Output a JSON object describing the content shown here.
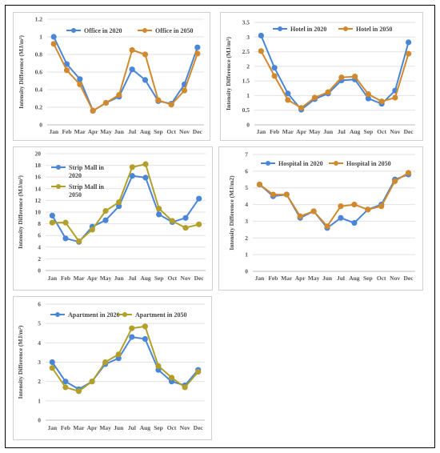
{
  "months": [
    "Jan",
    "Feb",
    "Mar",
    "Apr",
    "May",
    "Jun",
    "Jul",
    "Aug",
    "Sep",
    "Oct",
    "Nov",
    "Dec"
  ],
  "colors": {
    "s2020": "#4a86d8",
    "s2050": "#d1892d",
    "s2050_alt": "#b2a02a",
    "grid": "#e2e2e2"
  },
  "chart_data": [
    {
      "id": "office",
      "type": "line",
      "ylabel": "Intensity Difference (MJ/m²)",
      "ylim": [
        0,
        1.2
      ],
      "yticks": [
        "0",
        "0.2",
        "0.4",
        "0.6",
        "0.8",
        "1",
        "1.2"
      ],
      "legend_position": "top",
      "series": [
        {
          "name": "Office in 2020",
          "values": [
            1.0,
            0.69,
            0.52,
            0.16,
            0.25,
            0.32,
            0.63,
            0.51,
            0.27,
            0.24,
            0.46,
            0.88
          ]
        },
        {
          "name": "Office in 2050",
          "values": [
            0.92,
            0.62,
            0.46,
            0.16,
            0.25,
            0.34,
            0.85,
            0.8,
            0.28,
            0.23,
            0.39,
            0.81
          ]
        }
      ]
    },
    {
      "id": "hotel",
      "type": "line",
      "ylabel": "Intensity Difference (MJ/m²)",
      "ylim": [
        0,
        3.5
      ],
      "yticks": [
        "0",
        "0.5",
        "1",
        "1.5",
        "2",
        "2.5",
        "3",
        "3.5"
      ],
      "legend_position": "top",
      "series": [
        {
          "name": "Hotel in 2020",
          "values": [
            3.05,
            1.95,
            1.07,
            0.52,
            0.88,
            1.07,
            1.52,
            1.55,
            0.9,
            0.72,
            1.17,
            2.82
          ]
        },
        {
          "name": "Hotel in 2050",
          "values": [
            2.52,
            1.67,
            0.85,
            0.58,
            0.93,
            1.12,
            1.62,
            1.65,
            1.05,
            0.8,
            0.93,
            2.43
          ]
        }
      ]
    },
    {
      "id": "stripmall",
      "type": "line",
      "ylabel": "Intensity Difference (MJ/m²)",
      "ylim": [
        0,
        20
      ],
      "yticks": [
        "0",
        "2",
        "4",
        "6",
        "8",
        "10",
        "12",
        "14",
        "16",
        "18",
        "20"
      ],
      "legend_position": "top-left",
      "series": [
        {
          "name": "Strip Mall in 2020",
          "values": [
            9.4,
            5.5,
            4.9,
            7.5,
            8.6,
            11.0,
            16.2,
            15.9,
            9.6,
            8.3,
            9.0,
            12.3
          ]
        },
        {
          "name": "Strip Mall in 2050",
          "values": [
            8.2,
            8.2,
            5.0,
            7.0,
            10.2,
            11.7,
            17.7,
            18.2,
            10.6,
            8.5,
            7.3,
            7.9
          ]
        }
      ]
    },
    {
      "id": "hospital",
      "type": "line",
      "ylabel": "Intensity Difference (MJ/m2)",
      "ylim": [
        0,
        7
      ],
      "yticks": [
        "0",
        "1",
        "2",
        "3",
        "4",
        "5",
        "6",
        "7"
      ],
      "legend_position": "top",
      "series": [
        {
          "name": "Hospital in 2020",
          "values": [
            5.2,
            4.5,
            4.6,
            3.2,
            3.6,
            2.6,
            3.2,
            2.9,
            3.7,
            4.0,
            5.5,
            5.8
          ]
        },
        {
          "name": "Hospital in 2050",
          "values": [
            5.2,
            4.6,
            4.6,
            3.3,
            3.6,
            2.7,
            3.9,
            4.0,
            3.7,
            3.9,
            5.4,
            5.9
          ]
        }
      ]
    },
    {
      "id": "apartment",
      "type": "line",
      "ylabel": "Intensity Difference (MJ/m²)",
      "ylim": [
        0,
        6
      ],
      "yticks": [
        "0",
        "1",
        "2",
        "3",
        "4",
        "5",
        "6"
      ],
      "legend_position": "top",
      "series": [
        {
          "name": "Apartment in 2020",
          "values": [
            3.0,
            2.0,
            1.6,
            2.0,
            2.9,
            3.2,
            4.3,
            4.2,
            2.6,
            2.0,
            1.8,
            2.6
          ]
        },
        {
          "name": "Apartment in 2050",
          "values": [
            2.7,
            1.7,
            1.5,
            2.0,
            3.0,
            3.4,
            4.75,
            4.85,
            2.8,
            2.2,
            1.7,
            2.5
          ]
        }
      ]
    }
  ]
}
